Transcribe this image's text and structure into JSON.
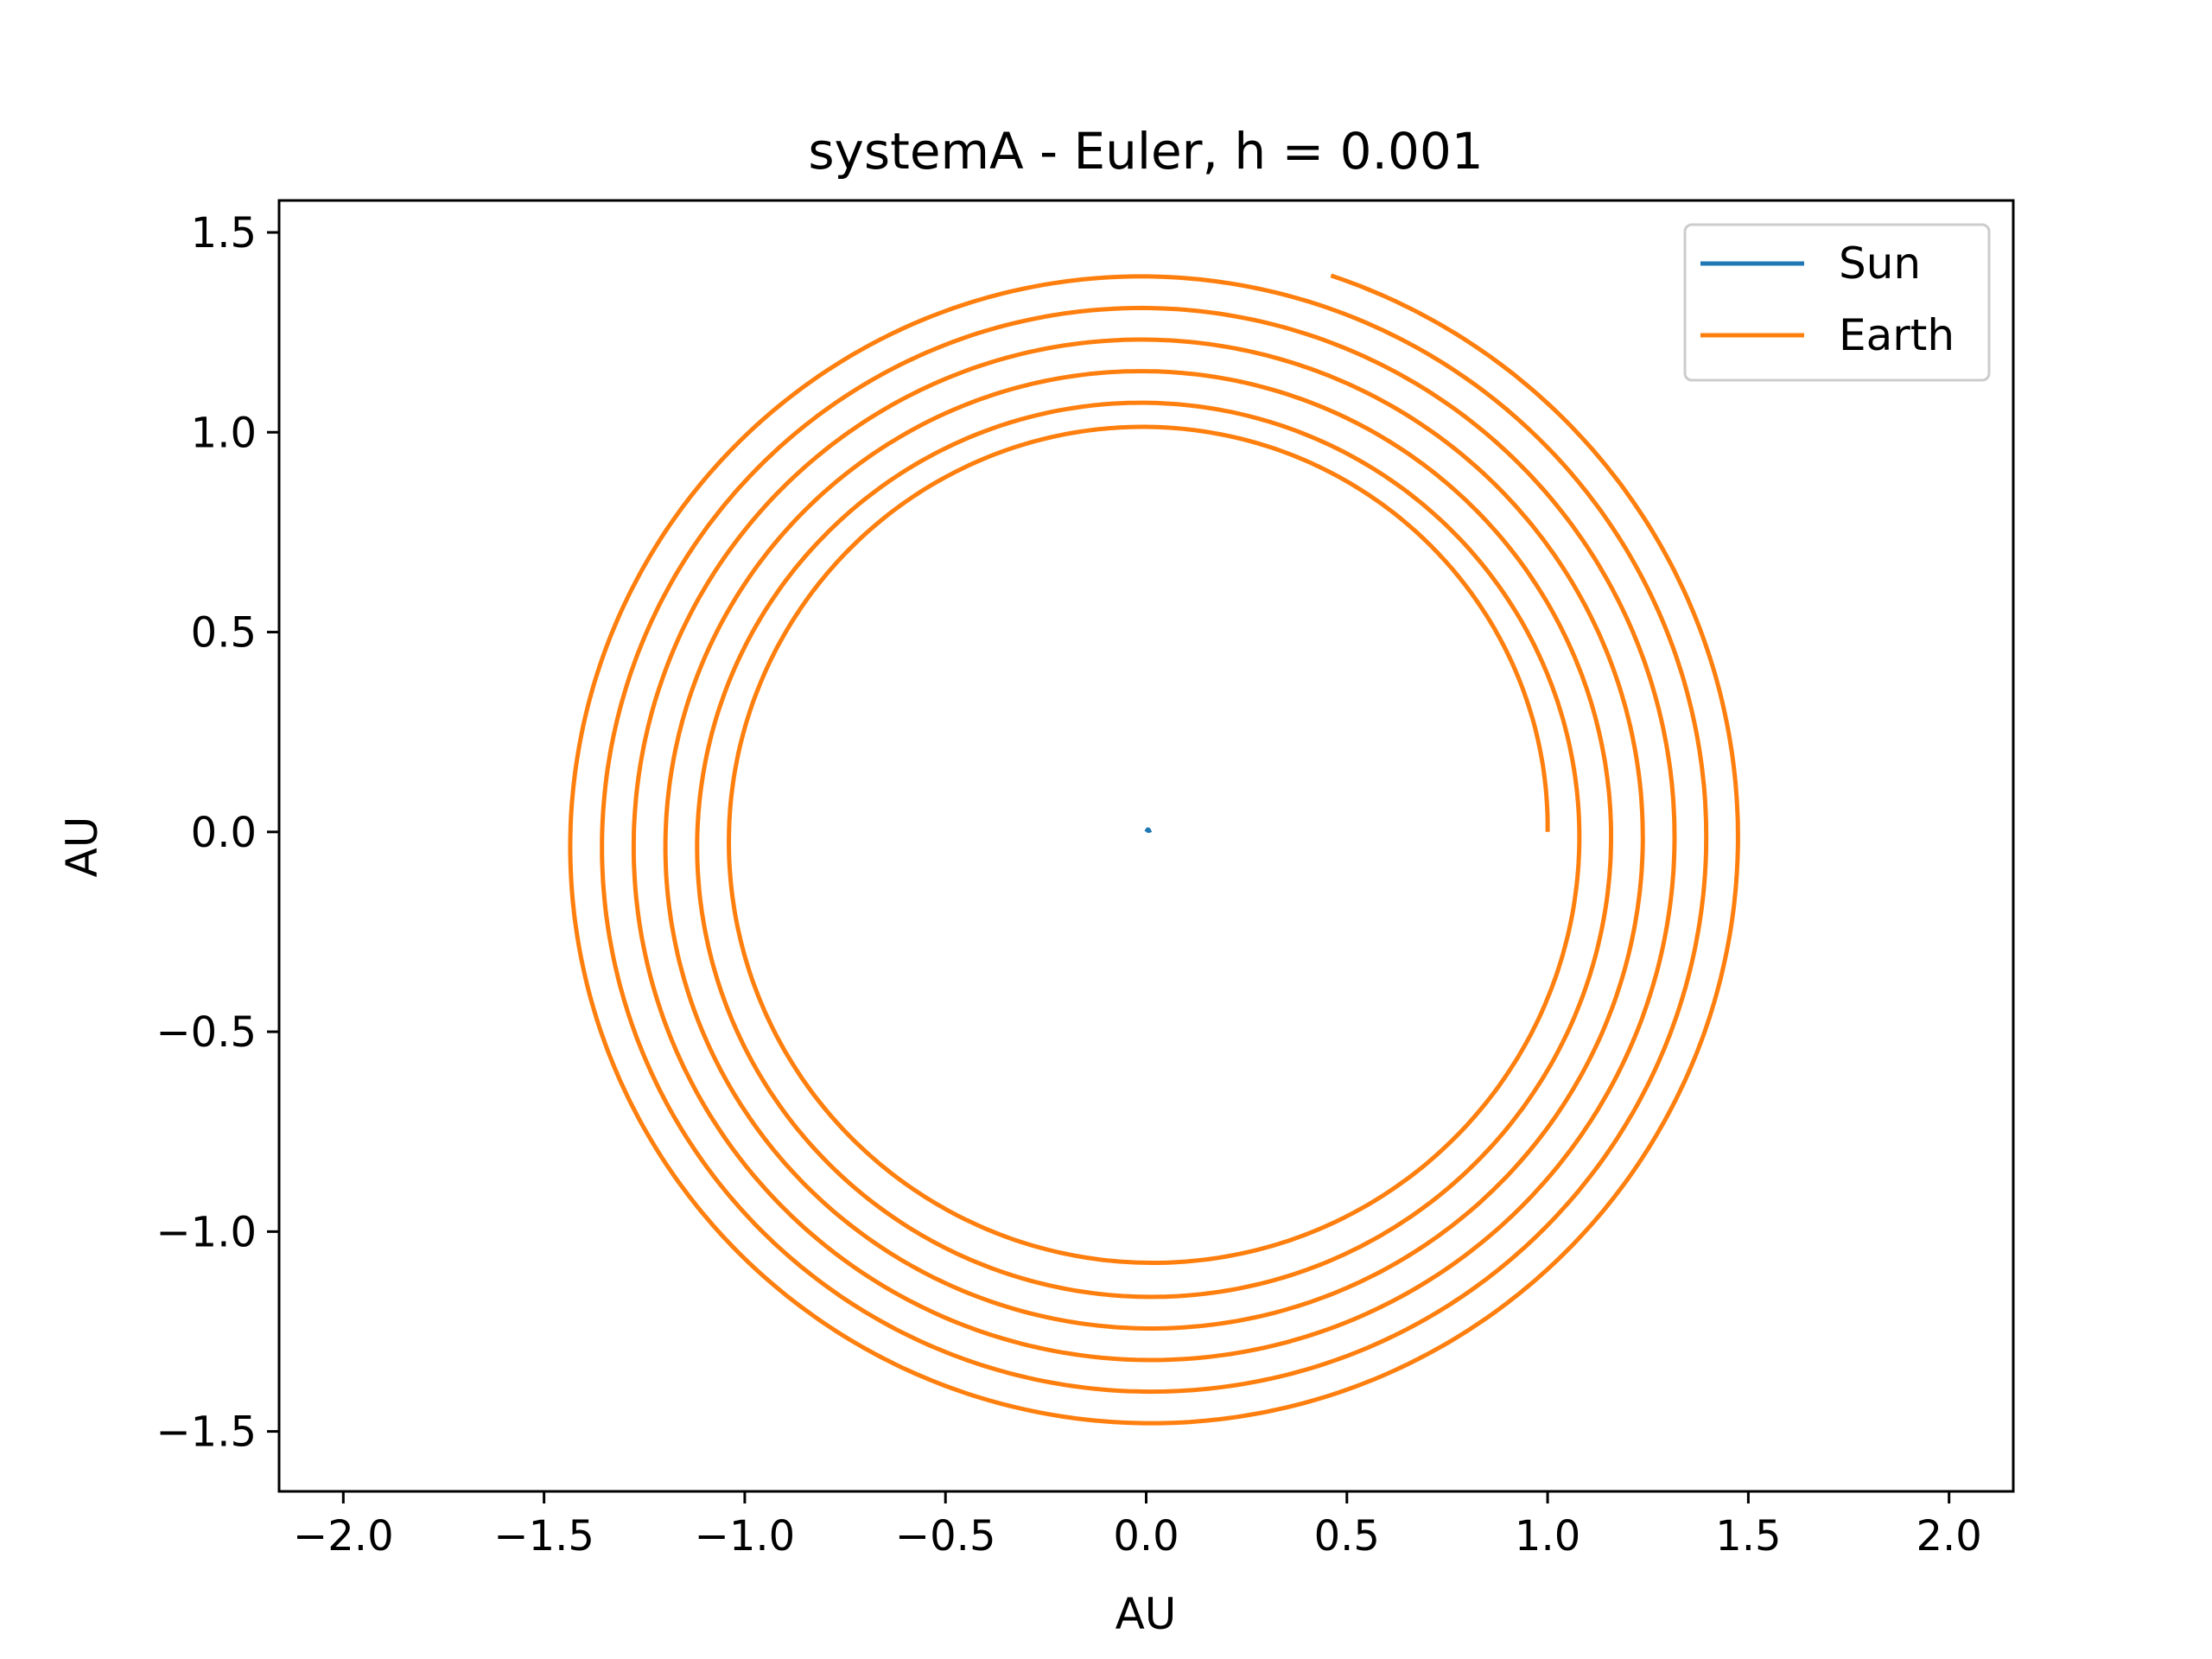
{
  "chart_data": {
    "type": "line",
    "title": "systemA - Euler, h = 0.001",
    "xlabel": "AU",
    "ylabel": "AU",
    "xlim": [
      -2.16,
      2.16
    ],
    "ylim": [
      -1.65,
      1.58
    ],
    "xticks": [
      -2.0,
      -1.5,
      -1.0,
      -0.5,
      0.0,
      0.5,
      1.0,
      1.5,
      2.0
    ],
    "xtick_labels": [
      "−2.0",
      "−1.5",
      "−1.0",
      "−0.5",
      "0.0",
      "0.5",
      "1.0",
      "1.5",
      "2.0"
    ],
    "yticks": [
      -1.5,
      -1.0,
      -0.5,
      0.0,
      0.5,
      1.0,
      1.5
    ],
    "ytick_labels": [
      "−1.5",
      "−1.0",
      "−0.5",
      "0.0",
      "0.5",
      "1.0",
      "1.5"
    ],
    "grid": false,
    "legend_position": "top-right",
    "series": [
      {
        "name": "Sun",
        "color": "#1f77b4",
        "x": [
          0.0,
          0.004,
          0.008,
          0.012
        ],
        "y": [
          0.0,
          0.006,
          0.003,
          0.005
        ]
      },
      {
        "name": "Earth",
        "color": "#ff7f0e",
        "spiral": {
          "start_x": 1.0,
          "start_y": 0.0,
          "start_radius": 1.0,
          "end_radius": 1.49,
          "revolutions": 6.2,
          "center_drift_y": -0.025
        }
      }
    ]
  }
}
